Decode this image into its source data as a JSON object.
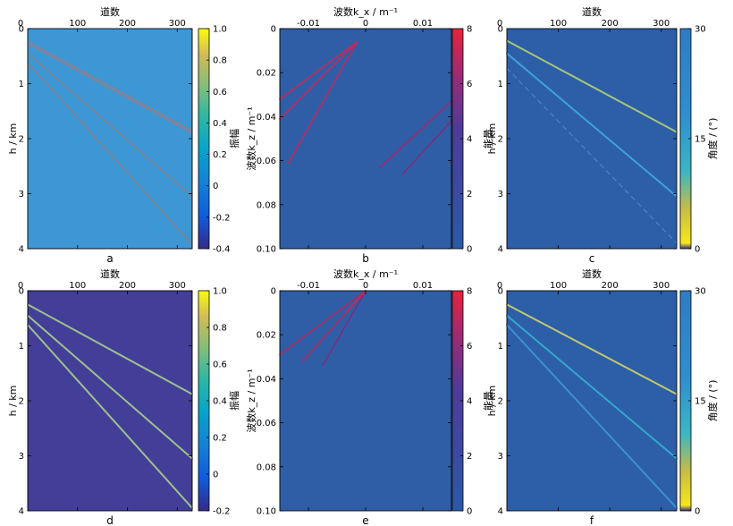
{
  "chart_data": [
    {
      "id": "a",
      "type": "heatmap",
      "caption": "a",
      "title": "",
      "xlabel": "道数",
      "ylabel": "h / km",
      "xlim": [
        0,
        330
      ],
      "ylim": [
        0,
        4
      ],
      "xticks": [
        "100",
        "200",
        "300"
      ],
      "yticks": [
        "0",
        "1",
        "2",
        "3",
        "4"
      ],
      "colorbar": {
        "label": "振幅",
        "min": -0.4,
        "max": 1.0,
        "ticks": [
          "1.0",
          "0.8",
          "0.6",
          "0.4",
          "0.2",
          "0",
          "-0.2",
          "-0.4"
        ],
        "colormap": "parula"
      },
      "background": "#3d97d4",
      "events": [
        {
          "x1": 0,
          "y1": 0.25,
          "x2": 330,
          "y2": 1.88,
          "color": "#b6766d",
          "double": true
        },
        {
          "x1": 0,
          "y1": 0.45,
          "x2": 330,
          "y2": 3.05,
          "color": "#9b7770",
          "double": false
        },
        {
          "x1": 0,
          "y1": 0.62,
          "x2": 330,
          "y2": 3.92,
          "color": "#9b7770",
          "double": false
        }
      ]
    },
    {
      "id": "b",
      "type": "heatmap",
      "caption": "b",
      "title": "",
      "xlabel": "波数k_x / m⁻¹",
      "ylabel": "波数k_z / m⁻¹",
      "xlim": [
        -0.015,
        0.015
      ],
      "ylim": [
        0,
        0.1
      ],
      "xticks": [
        "-0.01",
        "0",
        "0.01"
      ],
      "yticks": [
        "0",
        "0.02",
        "0.04",
        "0.06",
        "0.08",
        "0.10"
      ],
      "colorbar": {
        "label": "能量",
        "min": 0,
        "max": 8,
        "ticks": [
          "8",
          "6",
          "4",
          "2",
          "0"
        ],
        "colormap": "blue-red"
      },
      "background": "#2f5ea6",
      "events": [
        {
          "x1": -0.0015,
          "y1": 0.006,
          "x2": -0.015,
          "y2": 0.032,
          "color": "#c8285a",
          "double": false
        },
        {
          "x1": -0.0015,
          "y1": 0.006,
          "x2": -0.015,
          "y2": 0.041,
          "color": "#c8285a",
          "double": false
        },
        {
          "x1": -0.0015,
          "y1": 0.006,
          "x2": -0.0135,
          "y2": 0.061,
          "color": "#c0285e",
          "double": false
        },
        {
          "x1": 0.015,
          "y1": 0.033,
          "x2": 0.0025,
          "y2": 0.063,
          "color": "#9b2a72",
          "double": false
        },
        {
          "x1": 0.015,
          "y1": 0.042,
          "x2": 0.0065,
          "y2": 0.066,
          "color": "#7d2d7f",
          "double": false
        }
      ]
    },
    {
      "id": "c",
      "type": "heatmap",
      "caption": "c",
      "title": "",
      "xlabel": "道数",
      "ylabel": "h / km",
      "xlim": [
        0,
        330
      ],
      "ylim": [
        0,
        4
      ],
      "xticks": [
        "100",
        "200",
        "300"
      ],
      "yticks": [
        "0",
        "1",
        "2",
        "3",
        "4"
      ],
      "colorbar": {
        "label": "角度 / (°)",
        "min": 0,
        "max": 30,
        "ticks": [
          "30",
          "15",
          "0"
        ],
        "colormap": "parula"
      },
      "background": "#2c5fa7",
      "events": [
        {
          "x1": 0,
          "y1": 0.22,
          "x2": 330,
          "y2": 1.88,
          "color": "#a6c57a",
          "double": false
        },
        {
          "x1": 0,
          "y1": 0.45,
          "x2": 330,
          "y2": 3.05,
          "color": "#3fa1d7",
          "double": false
        },
        {
          "x1": 0,
          "y1": 0.72,
          "x2": 330,
          "y2": 3.9,
          "color": "#4d83c4",
          "dashed": true
        }
      ]
    },
    {
      "id": "d",
      "type": "heatmap",
      "caption": "d",
      "title": "",
      "xlabel": "道数",
      "ylabel": "h / km",
      "xlim": [
        0,
        330
      ],
      "ylim": [
        0,
        4
      ],
      "xticks": [
        "100",
        "200",
        "300"
      ],
      "yticks": [
        "0",
        "1",
        "2",
        "3",
        "4"
      ],
      "colorbar": {
        "label": "振幅",
        "min": -0.2,
        "max": 1.0,
        "ticks": [
          "1.0",
          "0.8",
          "0.6",
          "0.4",
          "0.2",
          "0",
          "-0.2"
        ],
        "colormap": "parula"
      },
      "background": "#433e98",
      "events": [
        {
          "x1": 0,
          "y1": 0.25,
          "x2": 330,
          "y2": 1.88,
          "color": "#9ec18f",
          "double": false
        },
        {
          "x1": 0,
          "y1": 0.45,
          "x2": 330,
          "y2": 3.05,
          "color": "#9ec18f",
          "double": false
        },
        {
          "x1": 0,
          "y1": 0.62,
          "x2": 330,
          "y2": 3.95,
          "color": "#9ec18f",
          "double": false
        }
      ]
    },
    {
      "id": "e",
      "type": "heatmap",
      "caption": "e",
      "title": "",
      "xlabel": "波数k_x / m⁻¹",
      "ylabel": "波数k_z / m⁻¹",
      "xlim": [
        -0.015,
        0.015
      ],
      "ylim": [
        0,
        0.1
      ],
      "xticks": [
        "-0.01",
        "0",
        "0.01"
      ],
      "yticks": [
        "0",
        "0.02",
        "0.04",
        "0.06",
        "0.08",
        "0.10"
      ],
      "colorbar": {
        "label": "能量",
        "min": 0,
        "max": 8,
        "ticks": [
          "8",
          "6",
          "4",
          "2",
          "0"
        ],
        "colormap": "blue-red"
      },
      "background": "#2f5ea6",
      "events": [
        {
          "x1": 0,
          "y1": 0.0,
          "x2": -0.015,
          "y2": 0.029,
          "color": "#b0285f",
          "double": false
        },
        {
          "x1": 0,
          "y1": 0.0,
          "x2": -0.011,
          "y2": 0.032,
          "color": "#b0285f",
          "double": false
        },
        {
          "x1": 0,
          "y1": 0.0,
          "x2": -0.0075,
          "y2": 0.034,
          "color": "#7d2d7f",
          "double": false
        },
        {
          "x1": 0,
          "y1": 0.0,
          "x2": -0.0035,
          "y2": 0.01,
          "color": "#c8285a",
          "double": false
        }
      ]
    },
    {
      "id": "f",
      "type": "heatmap",
      "caption": "f",
      "title": "",
      "xlabel": "道数",
      "ylabel": "h / km",
      "xlim": [
        0,
        330
      ],
      "ylim": [
        0,
        4
      ],
      "xticks": [
        "100",
        "200",
        "300"
      ],
      "yticks": [
        "0",
        "1",
        "2",
        "3",
        "4"
      ],
      "colorbar": {
        "label": "角度 / (°)",
        "min": 0,
        "max": 30,
        "ticks": [
          "30",
          "15",
          "0"
        ],
        "colormap": "parula"
      },
      "background": "#2c5fa7",
      "events": [
        {
          "x1": 0,
          "y1": 0.25,
          "x2": 330,
          "y2": 1.88,
          "color": "#c3c86d",
          "double": false
        },
        {
          "x1": 0,
          "y1": 0.45,
          "x2": 330,
          "y2": 3.05,
          "color": "#33a7cf",
          "double": false
        },
        {
          "x1": 0,
          "y1": 0.62,
          "x2": 330,
          "y2": 3.95,
          "color": "#3d8fd2",
          "double": false
        }
      ]
    }
  ]
}
